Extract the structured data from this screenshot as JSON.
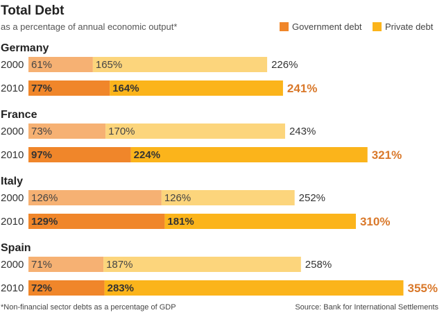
{
  "colors": {
    "gov_2000": "#f6b173",
    "priv_2000": "#fcd57c",
    "gov_2010": "#f0862a",
    "priv_2010": "#fbb41b",
    "total_2010_text": "#d9782a"
  },
  "chart_data": {
    "type": "bar",
    "orientation": "horizontal",
    "stacked": true,
    "title": "Total Debt",
    "subtitle": "as a percentage of annual economic output*",
    "legend": [
      {
        "name": "Government debt",
        "color": "#f0862a"
      },
      {
        "name": "Private debt",
        "color": "#fbb41b"
      }
    ],
    "legend_placement": "top-right",
    "unit": "%",
    "groups": [
      {
        "country": "Germany",
        "rows": [
          {
            "year": "2000",
            "government": 61,
            "private": 165,
            "total": 226
          },
          {
            "year": "2010",
            "government": 77,
            "private": 164,
            "total": 241
          }
        ]
      },
      {
        "country": "France",
        "rows": [
          {
            "year": "2000",
            "government": 73,
            "private": 170,
            "total": 243
          },
          {
            "year": "2010",
            "government": 97,
            "private": 224,
            "total": 321
          }
        ]
      },
      {
        "country": "Italy",
        "rows": [
          {
            "year": "2000",
            "government": 126,
            "private": 126,
            "total": 252
          },
          {
            "year": "2010",
            "government": 129,
            "private": 181,
            "total": 310
          }
        ]
      },
      {
        "country": "Spain",
        "rows": [
          {
            "year": "2000",
            "government": 71,
            "private": 187,
            "total": 258
          },
          {
            "year": "2010",
            "government": 72,
            "private": 283,
            "total": 355
          }
        ]
      }
    ],
    "footnote": "*Non-financial sector debts as a percentage of GDP",
    "source": "Source: Bank for International Settlements"
  }
}
